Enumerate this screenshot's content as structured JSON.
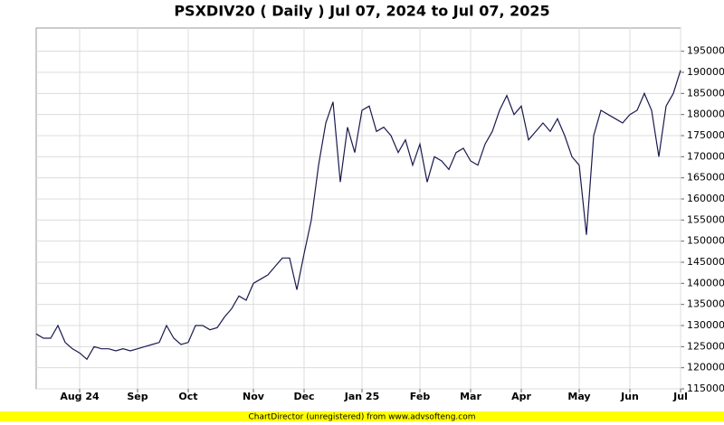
{
  "chart_data": {
    "type": "line",
    "title": "PSXDIV20 ( Daily ) Jul 07, 2024 to Jul 07, 2025",
    "footer": "ChartDirector (unregistered) from www.advsofteng.com",
    "color": "#1a1a4e",
    "grid": true,
    "categories": [
      null,
      null,
      null,
      null,
      null,
      null,
      "Aug 24",
      null,
      null,
      null,
      null,
      null,
      null,
      null,
      "Sep",
      null,
      null,
      null,
      null,
      null,
      null,
      "Oct",
      null,
      null,
      null,
      null,
      null,
      null,
      null,
      null,
      "Nov",
      null,
      null,
      null,
      null,
      null,
      null,
      "Dec",
      null,
      null,
      null,
      null,
      null,
      null,
      null,
      "Jan 25",
      null,
      null,
      null,
      null,
      null,
      null,
      null,
      "Feb",
      null,
      null,
      null,
      null,
      null,
      null,
      "Mar",
      null,
      null,
      null,
      null,
      null,
      null,
      "Apr",
      null,
      null,
      null,
      null,
      null,
      null,
      null,
      "May",
      null,
      null,
      null,
      null,
      null,
      null,
      "Jun",
      null,
      null,
      null,
      null,
      null,
      null,
      "Jul"
    ],
    "values": [
      128000,
      127000,
      127000,
      130000,
      126000,
      124500,
      123500,
      122000,
      125000,
      124500,
      124500,
      124000,
      124500,
      124000,
      124500,
      125000,
      125500,
      126000,
      130000,
      127000,
      125500,
      126000,
      130000,
      130000,
      129000,
      129500,
      132000,
      134000,
      137000,
      136000,
      140000,
      141000,
      142000,
      144000,
      146000,
      146000,
      138500,
      147000,
      155000,
      168000,
      178000,
      183000,
      164000,
      177000,
      171000,
      181000,
      182000,
      176000,
      177000,
      175000,
      171000,
      174000,
      168000,
      173000,
      164000,
      170000,
      169000,
      167000,
      171000,
      172000,
      169000,
      168000,
      173000,
      176000,
      181000,
      184500,
      180000,
      182000,
      174000,
      176000,
      178000,
      176000,
      179000,
      175000,
      170000,
      168000,
      151500,
      175000,
      181000,
      180000,
      179000,
      178000,
      180000,
      181000,
      185000,
      181000,
      170000,
      182000,
      185000,
      190500
    ],
    "ylim": [
      115000,
      200500
    ],
    "yticks": [
      115000,
      120000,
      125000,
      130000,
      135000,
      140000,
      145000,
      150000,
      155000,
      160000,
      165000,
      170000,
      175000,
      180000,
      185000,
      190000,
      195000
    ]
  }
}
